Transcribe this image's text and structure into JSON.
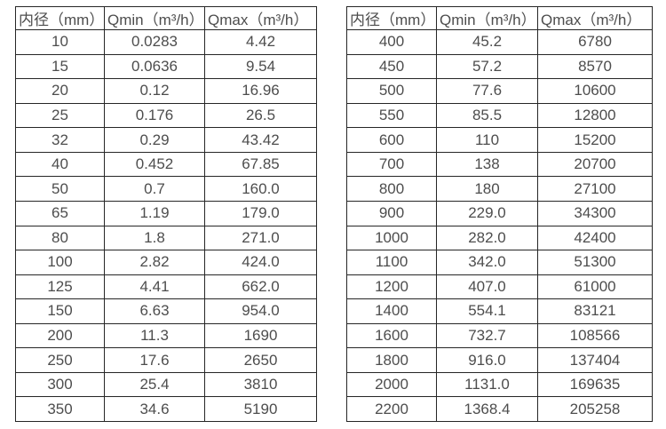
{
  "page": {
    "background_color": "#ffffff",
    "border_color": "#262626",
    "text_color": "#4d4d4d"
  },
  "tables": [
    {
      "name": "flow-range-small-diameters",
      "headers": [
        "内径（mm）",
        "Qmin（m³/h）",
        "Qmax（m³/h）"
      ],
      "rows": [
        [
          "10",
          "0.0283",
          "4.42"
        ],
        [
          "15",
          "0.0636",
          "9.54"
        ],
        [
          "20",
          "0.12",
          "16.96"
        ],
        [
          "25",
          "0.176",
          "26.5"
        ],
        [
          "32",
          "0.29",
          "43.42"
        ],
        [
          "40",
          "0.452",
          "67.85"
        ],
        [
          "50",
          "0.7",
          "160.0"
        ],
        [
          "65",
          "1.19",
          "179.0"
        ],
        [
          "80",
          "1.8",
          "271.0"
        ],
        [
          "100",
          "2.82",
          "424.0"
        ],
        [
          "125",
          "4.41",
          "662.0"
        ],
        [
          "150",
          "6.63",
          "954.0"
        ],
        [
          "200",
          "11.3",
          "1690"
        ],
        [
          "250",
          "17.6",
          "2650"
        ],
        [
          "300",
          "25.4",
          "3810"
        ],
        [
          "350",
          "34.6",
          "5190"
        ]
      ]
    },
    {
      "name": "flow-range-large-diameters",
      "headers": [
        "内径（mm）",
        "Qmin（m³/h）",
        "Qmax（m³/h）"
      ],
      "rows": [
        [
          "400",
          "45.2",
          "6780"
        ],
        [
          "450",
          "57.2",
          "8570"
        ],
        [
          "500",
          "77.6",
          "10600"
        ],
        [
          "550",
          "85.5",
          "12800"
        ],
        [
          "600",
          "110",
          "15200"
        ],
        [
          "700",
          "138",
          "20700"
        ],
        [
          "800",
          "180",
          "27100"
        ],
        [
          "900",
          "229.0",
          "34300"
        ],
        [
          "1000",
          "282.0",
          "42400"
        ],
        [
          "1100",
          "342.0",
          "51300"
        ],
        [
          "1200",
          "407.0",
          "61000"
        ],
        [
          "1400",
          "554.1",
          "83121"
        ],
        [
          "1600",
          "732.7",
          "108566"
        ],
        [
          "1800",
          "916.0",
          "137404"
        ],
        [
          "2000",
          "1131.0",
          "169635"
        ],
        [
          "2200",
          "1368.4",
          "205258"
        ]
      ]
    }
  ]
}
